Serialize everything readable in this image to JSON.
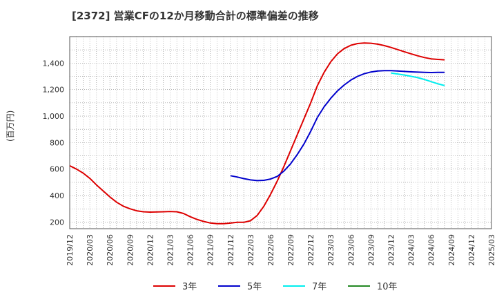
{
  "chart_data": {
    "type": "line",
    "title": "[2372]  営業CFの12か月移動合計の標準偏差の推移",
    "ylabel": "(百万円)",
    "xlabel": "",
    "ylim": [
      150,
      1600
    ],
    "yticks": [
      200,
      400,
      600,
      800,
      1000,
      1200,
      1400
    ],
    "ytick_labels": [
      "200",
      "400",
      "600",
      "800",
      "1,000",
      "1,200",
      "1,400"
    ],
    "xticks": [
      "2019/12",
      "2020/03",
      "2020/06",
      "2020/09",
      "2020/12",
      "2021/03",
      "2021/06",
      "2021/09",
      "2021/12",
      "2022/03",
      "2022/06",
      "2022/09",
      "2022/12",
      "2023/03",
      "2023/06",
      "2023/09",
      "2023/12",
      "2024/03",
      "2024/06",
      "2024/09",
      "2024/12",
      "2025/03"
    ],
    "grid": true,
    "legend_position": "bottom",
    "series": [
      {
        "name": "3年",
        "color": "#dd0000",
        "points": [
          [
            "2019/12",
            625
          ],
          [
            "2020/01",
            600
          ],
          [
            "2020/02",
            570
          ],
          [
            "2020/03",
            530
          ],
          [
            "2020/04",
            480
          ],
          [
            "2020/05",
            435
          ],
          [
            "2020/06",
            390
          ],
          [
            "2020/07",
            350
          ],
          [
            "2020/08",
            320
          ],
          [
            "2020/09",
            300
          ],
          [
            "2020/10",
            285
          ],
          [
            "2020/11",
            278
          ],
          [
            "2020/12",
            275
          ],
          [
            "2021/01",
            276
          ],
          [
            "2021/02",
            278
          ],
          [
            "2021/03",
            280
          ],
          [
            "2021/04",
            278
          ],
          [
            "2021/05",
            265
          ],
          [
            "2021/06",
            240
          ],
          [
            "2021/07",
            220
          ],
          [
            "2021/08",
            205
          ],
          [
            "2021/09",
            193
          ],
          [
            "2021/10",
            188
          ],
          [
            "2021/11",
            188
          ],
          [
            "2021/12",
            192
          ],
          [
            "2022/01",
            198
          ],
          [
            "2022/02",
            198
          ],
          [
            "2022/03",
            210
          ],
          [
            "2022/04",
            250
          ],
          [
            "2022/05",
            320
          ],
          [
            "2022/06",
            410
          ],
          [
            "2022/07",
            510
          ],
          [
            "2022/08",
            620
          ],
          [
            "2022/09",
            740
          ],
          [
            "2022/10",
            860
          ],
          [
            "2022/11",
            980
          ],
          [
            "2022/12",
            1100
          ],
          [
            "2023/01",
            1230
          ],
          [
            "2023/02",
            1330
          ],
          [
            "2023/03",
            1410
          ],
          [
            "2023/04",
            1470
          ],
          [
            "2023/05",
            1510
          ],
          [
            "2023/06",
            1535
          ],
          [
            "2023/07",
            1548
          ],
          [
            "2023/08",
            1552
          ],
          [
            "2023/09",
            1550
          ],
          [
            "2023/10",
            1543
          ],
          [
            "2023/11",
            1532
          ],
          [
            "2023/12",
            1518
          ],
          [
            "2024/01",
            1502
          ],
          [
            "2024/02",
            1486
          ],
          [
            "2024/03",
            1470
          ],
          [
            "2024/04",
            1455
          ],
          [
            "2024/05",
            1442
          ],
          [
            "2024/06",
            1432
          ],
          [
            "2024/07",
            1428
          ],
          [
            "2024/08",
            1425
          ]
        ]
      },
      {
        "name": "5年",
        "color": "#0000cc",
        "points": [
          [
            "2021/12",
            550
          ],
          [
            "2022/01",
            540
          ],
          [
            "2022/02",
            528
          ],
          [
            "2022/03",
            518
          ],
          [
            "2022/04",
            513
          ],
          [
            "2022/05",
            515
          ],
          [
            "2022/06",
            525
          ],
          [
            "2022/07",
            545
          ],
          [
            "2022/08",
            585
          ],
          [
            "2022/09",
            640
          ],
          [
            "2022/10",
            710
          ],
          [
            "2022/11",
            790
          ],
          [
            "2022/12",
            885
          ],
          [
            "2023/01",
            990
          ],
          [
            "2023/02",
            1070
          ],
          [
            "2023/03",
            1135
          ],
          [
            "2023/04",
            1190
          ],
          [
            "2023/05",
            1235
          ],
          [
            "2023/06",
            1272
          ],
          [
            "2023/07",
            1300
          ],
          [
            "2023/08",
            1320
          ],
          [
            "2023/09",
            1333
          ],
          [
            "2023/10",
            1340
          ],
          [
            "2023/11",
            1343
          ],
          [
            "2023/12",
            1343
          ],
          [
            "2024/01",
            1340
          ],
          [
            "2024/02",
            1337
          ],
          [
            "2024/03",
            1334
          ],
          [
            "2024/04",
            1332
          ],
          [
            "2024/05",
            1330
          ],
          [
            "2024/06",
            1329
          ],
          [
            "2024/07",
            1330
          ],
          [
            "2024/08",
            1330
          ]
        ]
      },
      {
        "name": "7年",
        "color": "#00eeee",
        "points": [
          [
            "2023/12",
            1325
          ],
          [
            "2024/01",
            1318
          ],
          [
            "2024/02",
            1310
          ],
          [
            "2024/03",
            1300
          ],
          [
            "2024/04",
            1290
          ],
          [
            "2024/05",
            1276
          ],
          [
            "2024/06",
            1260
          ],
          [
            "2024/07",
            1244
          ],
          [
            "2024/08",
            1230
          ]
        ]
      },
      {
        "name": "10年",
        "color": "#228822",
        "points": []
      }
    ]
  }
}
